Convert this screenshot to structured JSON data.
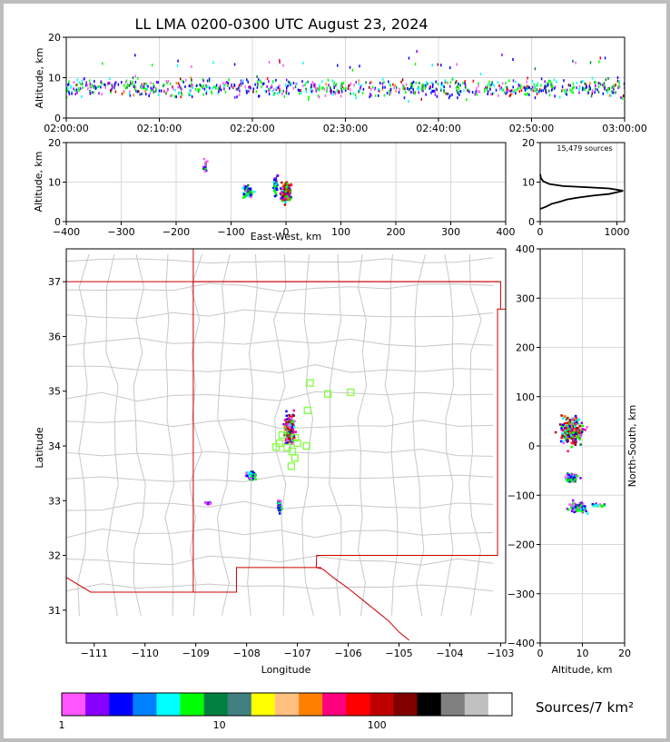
{
  "title": "LL LMA 0200-0300 UTC August 23, 2024",
  "colors": {
    "source_colors": [
      "#ff55ff",
      "#8800ff",
      "#0000ff",
      "#0080ff",
      "#00ffff",
      "#00ff00",
      "#008040",
      "#408080",
      "#ffff00",
      "#ffc080",
      "#ff8000",
      "#ff0080",
      "#ff0000",
      "#c00000",
      "#800000",
      "#000000",
      "#808080",
      "#c0c0c0",
      "#ffffff"
    ],
    "state_border": "#cc0000",
    "county_lines": "#c8c8c8",
    "stations": "#80ff40"
  },
  "chart_data": [
    {
      "id": "time_height",
      "type": "scatter",
      "xlabel": "",
      "ylabel": "Altitude, km",
      "xticks": [
        "02:00:00",
        "02:10:00",
        "02:20:00",
        "02:30:00",
        "02:40:00",
        "02:50:00",
        "03:00:00"
      ],
      "xlim_minutes": [
        0,
        60
      ],
      "ylim": [
        0,
        20
      ],
      "yticks": [
        0,
        10,
        20
      ],
      "grid": true
    },
    {
      "id": "ew_height",
      "type": "scatter",
      "xlabel": "East-West, km",
      "ylabel": "Altitude, km",
      "xlim": [
        -400,
        400
      ],
      "xticks": [
        -400,
        -300,
        -200,
        -100,
        0,
        100,
        200,
        300,
        400
      ],
      "ylim": [
        0,
        20
      ],
      "yticks": [
        0,
        10,
        20
      ],
      "grid": true
    },
    {
      "id": "height_hist",
      "type": "line",
      "annotation": "15,479 sources",
      "xlim": [
        0,
        1100
      ],
      "xticks": [
        0,
        1000
      ],
      "ylim": [
        0,
        20
      ],
      "yticks": [
        0,
        10,
        20
      ],
      "profile": [
        [
          0,
          3.2
        ],
        [
          80,
          3.8
        ],
        [
          150,
          4.5
        ],
        [
          250,
          5.0
        ],
        [
          350,
          5.6
        ],
        [
          500,
          6.1
        ],
        [
          700,
          6.6
        ],
        [
          900,
          7.0
        ],
        [
          1080,
          7.8
        ],
        [
          900,
          8.4
        ],
        [
          600,
          8.7
        ],
        [
          300,
          9.0
        ],
        [
          120,
          9.5
        ],
        [
          40,
          10.2
        ],
        [
          10,
          11.0
        ],
        [
          0,
          12
        ]
      ]
    },
    {
      "id": "plan_map",
      "type": "scatter",
      "xlabel": "Longitude",
      "ylabel": "Latitude",
      "xlim": [
        -111.55,
        -102.9
      ],
      "ylim": [
        30.4,
        37.6
      ],
      "xticks": [
        -111,
        -110,
        -109,
        -108,
        -107,
        -106,
        -105,
        -104,
        -103
      ],
      "yticks": [
        31,
        32,
        33,
        34,
        35,
        36,
        37
      ],
      "grid": false
    },
    {
      "id": "ns_height",
      "type": "scatter",
      "xlabel": "Altitude, km",
      "ylabel": "North-South, km",
      "xlim": [
        0,
        20
      ],
      "xticks": [
        0,
        10,
        20
      ],
      "ylim": [
        -400,
        400
      ],
      "yticks": [
        -400,
        -300,
        -200,
        -100,
        0,
        100,
        200,
        300,
        400
      ],
      "grid": true
    },
    {
      "id": "colorbar",
      "type": "heatmap",
      "label": "Sources/7 km²",
      "ticks": [
        "1",
        "10",
        "100"
      ]
    }
  ],
  "clusters": [
    {
      "lon": -107.15,
      "lat": 34.3,
      "n": 260,
      "spread_lon": 0.09,
      "spread_lat": 0.25,
      "alt": 7.5,
      "alt_spread": 2.5,
      "hot": true
    },
    {
      "lon": -107.9,
      "lat": 33.45,
      "n": 70,
      "spread_lon": 0.1,
      "spread_lat": 0.08,
      "alt": 7.5,
      "alt_spread": 1.5,
      "hot": false
    },
    {
      "lon": -107.35,
      "lat": 32.9,
      "n": 60,
      "spread_lon": 0.04,
      "spread_lat": 0.1,
      "alt": 9,
      "alt_spread": 2.5,
      "hot": false
    },
    {
      "lon": -108.75,
      "lat": 32.95,
      "n": 14,
      "spread_lon": 0.05,
      "spread_lat": 0.03,
      "alt": 14,
      "alt_spread": 2,
      "hot": false
    }
  ],
  "stations": [
    [
      -106.75,
      35.15
    ],
    [
      -106.4,
      34.95
    ],
    [
      -105.95,
      34.98
    ],
    [
      -106.8,
      34.65
    ],
    [
      -107.3,
      34.2
    ],
    [
      -107.05,
      34.15
    ],
    [
      -107.35,
      34.05
    ],
    [
      -107.0,
      34.05
    ],
    [
      -106.82,
      34.0
    ],
    [
      -107.2,
      33.97
    ],
    [
      -107.42,
      33.98
    ],
    [
      -107.1,
      33.9
    ],
    [
      -107.05,
      33.78
    ],
    [
      -107.12,
      33.63
    ]
  ],
  "nm_border": [
    [
      -109.05,
      37.0
    ],
    [
      -103.0,
      37.0
    ],
    [
      -103.0,
      36.5
    ],
    [
      -103.06,
      36.5
    ],
    [
      -103.06,
      32.0
    ],
    [
      -106.62,
      32.0
    ],
    [
      -106.63,
      31.78
    ],
    [
      -106.5,
      31.75
    ],
    [
      -106.3,
      31.6
    ],
    [
      -106.0,
      31.4
    ],
    [
      -105.6,
      31.1
    ],
    [
      -105.2,
      30.8
    ],
    [
      -105.0,
      30.6
    ],
    [
      -104.8,
      30.45
    ]
  ],
  "nm_west": [
    [
      -109.05,
      37.6
    ],
    [
      -109.05,
      31.33
    ],
    [
      -108.2,
      31.33
    ],
    [
      -108.2,
      31.78
    ],
    [
      -106.53,
      31.78
    ]
  ],
  "az_mexico": [
    [
      -111.55,
      31.6
    ],
    [
      -111.07,
      31.33
    ],
    [
      -109.05,
      31.33
    ]
  ],
  "tx_ok": [
    [
      -103.0,
      36.5
    ],
    [
      -102.9,
      36.5
    ]
  ]
}
